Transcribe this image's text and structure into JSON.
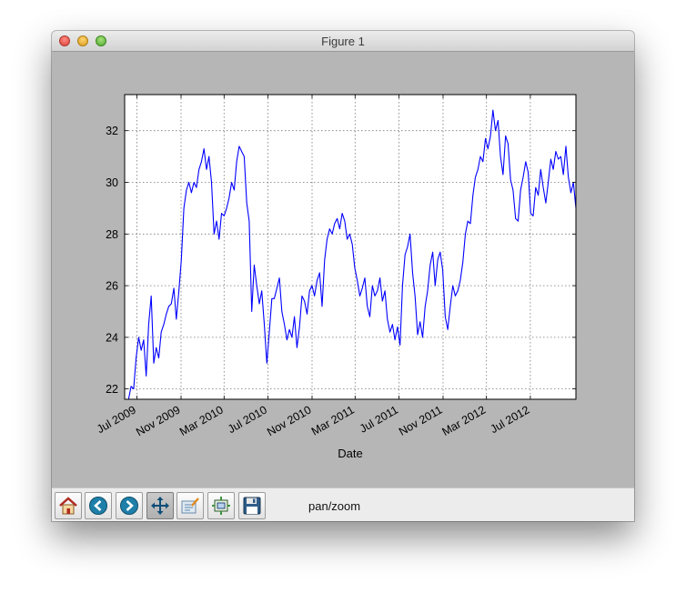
{
  "window": {
    "title": "Figure 1"
  },
  "toolbar": {
    "buttons": [
      {
        "name": "home-button",
        "icon": "home-icon",
        "active": false
      },
      {
        "name": "back-button",
        "icon": "arrow-left-icon",
        "active": false
      },
      {
        "name": "forward-button",
        "icon": "arrow-right-icon",
        "active": false
      },
      {
        "name": "pan-button",
        "icon": "pan-move-icon",
        "active": true
      },
      {
        "name": "zoom-button",
        "icon": "zoom-rect-icon",
        "active": false
      },
      {
        "name": "subplots-button",
        "icon": "subplots-config-icon",
        "active": false
      },
      {
        "name": "save-button",
        "icon": "floppy-disk-icon",
        "active": false
      }
    ],
    "mode_label": "pan/zoom"
  },
  "colors": {
    "line": "#0000ff",
    "figure_bg": "#b6b6b6",
    "axes_bg": "#ffffff",
    "toolbar_bg": "#ececec"
  },
  "chart_data": {
    "type": "line",
    "xlabel": "Date",
    "ylabel": "",
    "title": "",
    "grid": true,
    "xlim": [
      "2009-05-28",
      "2012-11-05"
    ],
    "ylim": [
      21.6,
      33.4
    ],
    "yticks": [
      22,
      24,
      26,
      28,
      30,
      32
    ],
    "xticks": [
      {
        "date": "2009-07-01",
        "label": "Jul 2009"
      },
      {
        "date": "2009-11-01",
        "label": "Nov 2009"
      },
      {
        "date": "2010-03-01",
        "label": "Mar 2010"
      },
      {
        "date": "2010-07-01",
        "label": "Jul 2010"
      },
      {
        "date": "2010-11-01",
        "label": "Nov 2010"
      },
      {
        "date": "2011-03-01",
        "label": "Mar 2011"
      },
      {
        "date": "2011-07-01",
        "label": "Jul 2011"
      },
      {
        "date": "2011-11-01",
        "label": "Nov 2011"
      },
      {
        "date": "2012-03-01",
        "label": "Mar 2012"
      },
      {
        "date": "2012-07-01",
        "label": "Jul 2012"
      }
    ],
    "series": [
      {
        "x": [
          "2009-06-08",
          "2009-06-15",
          "2009-06-22",
          "2009-06-29",
          "2009-07-06",
          "2009-07-13",
          "2009-07-20",
          "2009-07-27",
          "2009-08-03",
          "2009-08-10",
          "2009-08-17",
          "2009-08-24",
          "2009-08-31",
          "2009-09-07",
          "2009-09-14",
          "2009-09-21",
          "2009-09-28",
          "2009-10-05",
          "2009-10-12",
          "2009-10-19",
          "2009-10-26",
          "2009-11-02",
          "2009-11-09",
          "2009-11-16",
          "2009-11-23",
          "2009-11-30",
          "2009-12-07",
          "2009-12-14",
          "2009-12-21",
          "2009-12-28",
          "2010-01-04",
          "2010-01-11",
          "2010-01-18",
          "2010-01-25",
          "2010-02-01",
          "2010-02-08",
          "2010-02-15",
          "2010-02-22",
          "2010-03-01",
          "2010-03-08",
          "2010-03-15",
          "2010-03-22",
          "2010-03-29",
          "2010-04-05",
          "2010-04-12",
          "2010-04-19",
          "2010-04-26",
          "2010-05-03",
          "2010-05-10",
          "2010-05-17",
          "2010-05-24",
          "2010-05-31",
          "2010-06-07",
          "2010-06-14",
          "2010-06-21",
          "2010-06-28",
          "2010-07-05",
          "2010-07-12",
          "2010-07-19",
          "2010-07-26",
          "2010-08-02",
          "2010-08-09",
          "2010-08-16",
          "2010-08-23",
          "2010-08-30",
          "2010-09-06",
          "2010-09-13",
          "2010-09-20",
          "2010-09-27",
          "2010-10-04",
          "2010-10-11",
          "2010-10-18",
          "2010-10-25",
          "2010-11-01",
          "2010-11-08",
          "2010-11-15",
          "2010-11-22",
          "2010-11-29",
          "2010-12-06",
          "2010-12-13",
          "2010-12-20",
          "2010-12-27",
          "2011-01-03",
          "2011-01-10",
          "2011-01-17",
          "2011-01-24",
          "2011-01-31",
          "2011-02-07",
          "2011-02-14",
          "2011-02-21",
          "2011-02-28",
          "2011-03-07",
          "2011-03-14",
          "2011-03-21",
          "2011-03-28",
          "2011-04-04",
          "2011-04-11",
          "2011-04-18",
          "2011-04-25",
          "2011-05-02",
          "2011-05-09",
          "2011-05-16",
          "2011-05-23",
          "2011-05-30",
          "2011-06-06",
          "2011-06-13",
          "2011-06-20",
          "2011-06-27",
          "2011-07-04",
          "2011-07-11",
          "2011-07-18",
          "2011-07-25",
          "2011-08-01",
          "2011-08-08",
          "2011-08-15",
          "2011-08-22",
          "2011-08-29",
          "2011-09-05",
          "2011-09-12",
          "2011-09-19",
          "2011-09-26",
          "2011-10-03",
          "2011-10-10",
          "2011-10-17",
          "2011-10-24",
          "2011-10-31",
          "2011-11-07",
          "2011-11-14",
          "2011-11-21",
          "2011-11-28",
          "2011-12-05",
          "2011-12-12",
          "2011-12-19",
          "2011-12-26",
          "2012-01-02",
          "2012-01-09",
          "2012-01-16",
          "2012-01-23",
          "2012-01-30",
          "2012-02-06",
          "2012-02-13",
          "2012-02-20",
          "2012-02-27",
          "2012-03-05",
          "2012-03-12",
          "2012-03-19",
          "2012-03-26",
          "2012-04-02",
          "2012-04-09",
          "2012-04-16",
          "2012-04-23",
          "2012-04-30",
          "2012-05-07",
          "2012-05-14",
          "2012-05-21",
          "2012-05-28",
          "2012-06-04",
          "2012-06-11",
          "2012-06-18",
          "2012-06-25",
          "2012-07-02",
          "2012-07-09",
          "2012-07-16",
          "2012-07-23",
          "2012-07-30",
          "2012-08-06",
          "2012-08-13",
          "2012-08-20",
          "2012-08-27",
          "2012-09-03",
          "2012-09-10",
          "2012-09-17",
          "2012-09-24",
          "2012-10-01",
          "2012-10-08",
          "2012-10-15",
          "2012-10-22",
          "2012-10-29",
          "2012-11-05"
        ],
        "y": [
          21.6,
          22.1,
          22.0,
          23.2,
          24.0,
          23.5,
          23.9,
          22.5,
          24.5,
          25.6,
          23.0,
          23.6,
          23.2,
          24.2,
          24.5,
          24.9,
          25.2,
          25.3,
          25.9,
          24.7,
          25.8,
          27.0,
          29.0,
          29.7,
          30.0,
          29.6,
          30.0,
          29.8,
          30.5,
          30.8,
          31.3,
          30.5,
          31.0,
          30.0,
          28.0,
          28.5,
          27.8,
          28.8,
          28.7,
          29.0,
          29.4,
          30.0,
          29.7,
          30.8,
          31.4,
          31.2,
          31.0,
          29.2,
          28.5,
          25.0,
          26.8,
          26.0,
          25.3,
          25.8,
          24.5,
          23.0,
          24.2,
          25.5,
          25.5,
          25.9,
          26.3,
          25.0,
          24.5,
          23.9,
          24.3,
          24.0,
          24.8,
          23.6,
          24.4,
          25.6,
          25.4,
          24.9,
          25.8,
          26.0,
          25.6,
          26.2,
          26.5,
          25.2,
          27.0,
          27.8,
          28.2,
          28.0,
          28.4,
          28.6,
          28.2,
          28.8,
          28.5,
          27.8,
          28.0,
          27.6,
          26.7,
          26.2,
          25.6,
          25.9,
          26.3,
          25.2,
          24.8,
          26.0,
          25.6,
          25.8,
          26.3,
          25.4,
          25.8,
          24.7,
          24.2,
          24.5,
          23.9,
          24.4,
          23.7,
          26.0,
          27.2,
          27.5,
          28.0,
          26.5,
          25.6,
          24.1,
          24.6,
          24.0,
          25.2,
          25.8,
          26.8,
          27.3,
          26.0,
          27.0,
          27.3,
          26.6,
          24.8,
          24.3,
          25.2,
          26.0,
          25.6,
          25.8,
          26.2,
          26.9,
          28.0,
          28.5,
          28.4,
          29.5,
          30.2,
          30.5,
          31.0,
          30.8,
          31.7,
          31.3,
          31.8,
          32.8,
          32.0,
          32.4,
          31.0,
          30.3,
          31.8,
          31.5,
          30.1,
          29.7,
          28.6,
          28.5,
          29.7,
          30.2,
          30.8,
          30.4,
          28.8,
          28.7,
          29.8,
          29.5,
          30.5,
          29.8,
          29.2,
          30.0,
          30.9,
          30.5,
          31.2,
          30.9,
          31.0,
          30.3,
          31.4,
          30.2,
          29.6,
          30.0,
          29.0
        ]
      }
    ]
  }
}
